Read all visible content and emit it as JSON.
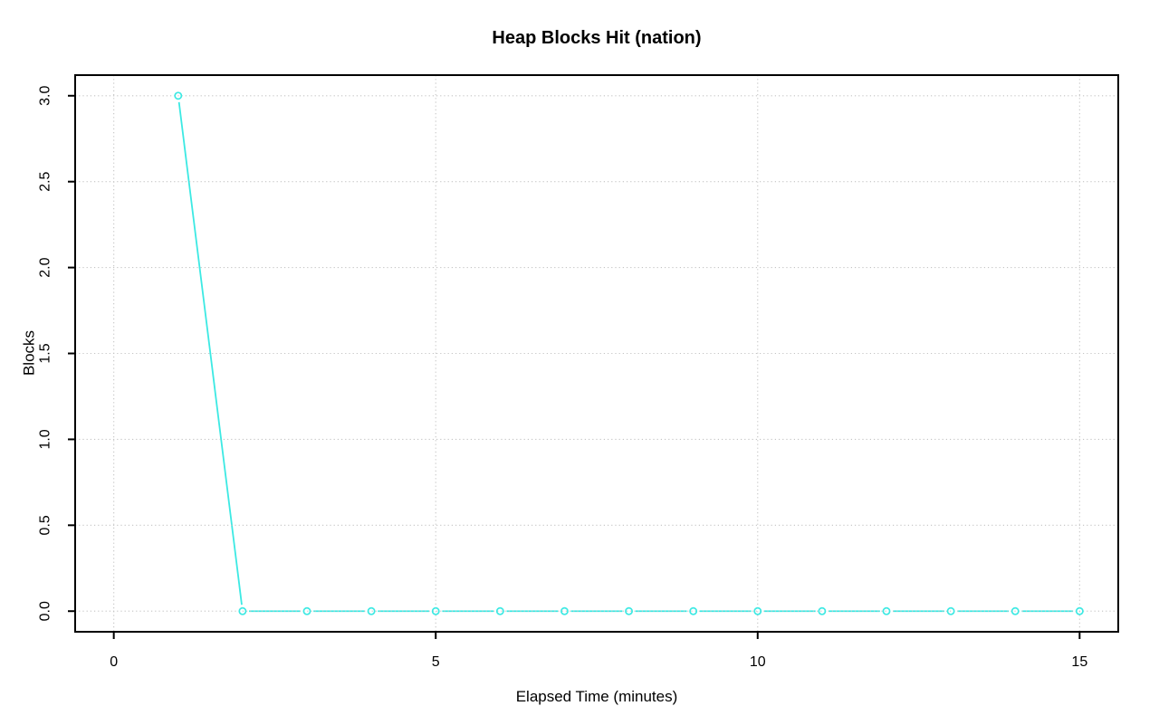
{
  "page": {
    "background_color": "#FFFFFF"
  },
  "chart_data": {
    "type": "line",
    "title": "Heap Blocks Hit (nation)",
    "xlabel": "Elapsed Time (minutes)",
    "ylabel": "Blocks",
    "x": [
      1,
      2,
      3,
      4,
      5,
      6,
      7,
      8,
      9,
      10,
      11,
      12,
      13,
      14,
      15
    ],
    "y": [
      3,
      0,
      0,
      0,
      0,
      0,
      0,
      0,
      0,
      0,
      0,
      0,
      0,
      0,
      0
    ],
    "xticks": [
      0,
      5,
      10,
      15
    ],
    "xtick_labels": [
      "0",
      "5",
      "10",
      "15"
    ],
    "yticks": [
      0,
      0.5,
      1,
      1.5,
      2,
      2.5,
      3
    ],
    "ytick_labels": [
      "0.0",
      "0.5",
      "1.0",
      "1.5",
      "2.0",
      "2.5",
      "3.0"
    ],
    "xlim": [
      -0.6,
      15.6
    ],
    "ylim": [
      -0.12,
      3.12
    ],
    "grid": true,
    "grid_style": "dotted",
    "legend": "none",
    "marker": "open-circle",
    "line_style": "segments-with-point-gaps",
    "colors": {
      "series": "#3CE9E3",
      "grid": "#C4C4C4",
      "box": "#000000",
      "text": "#000000"
    }
  }
}
